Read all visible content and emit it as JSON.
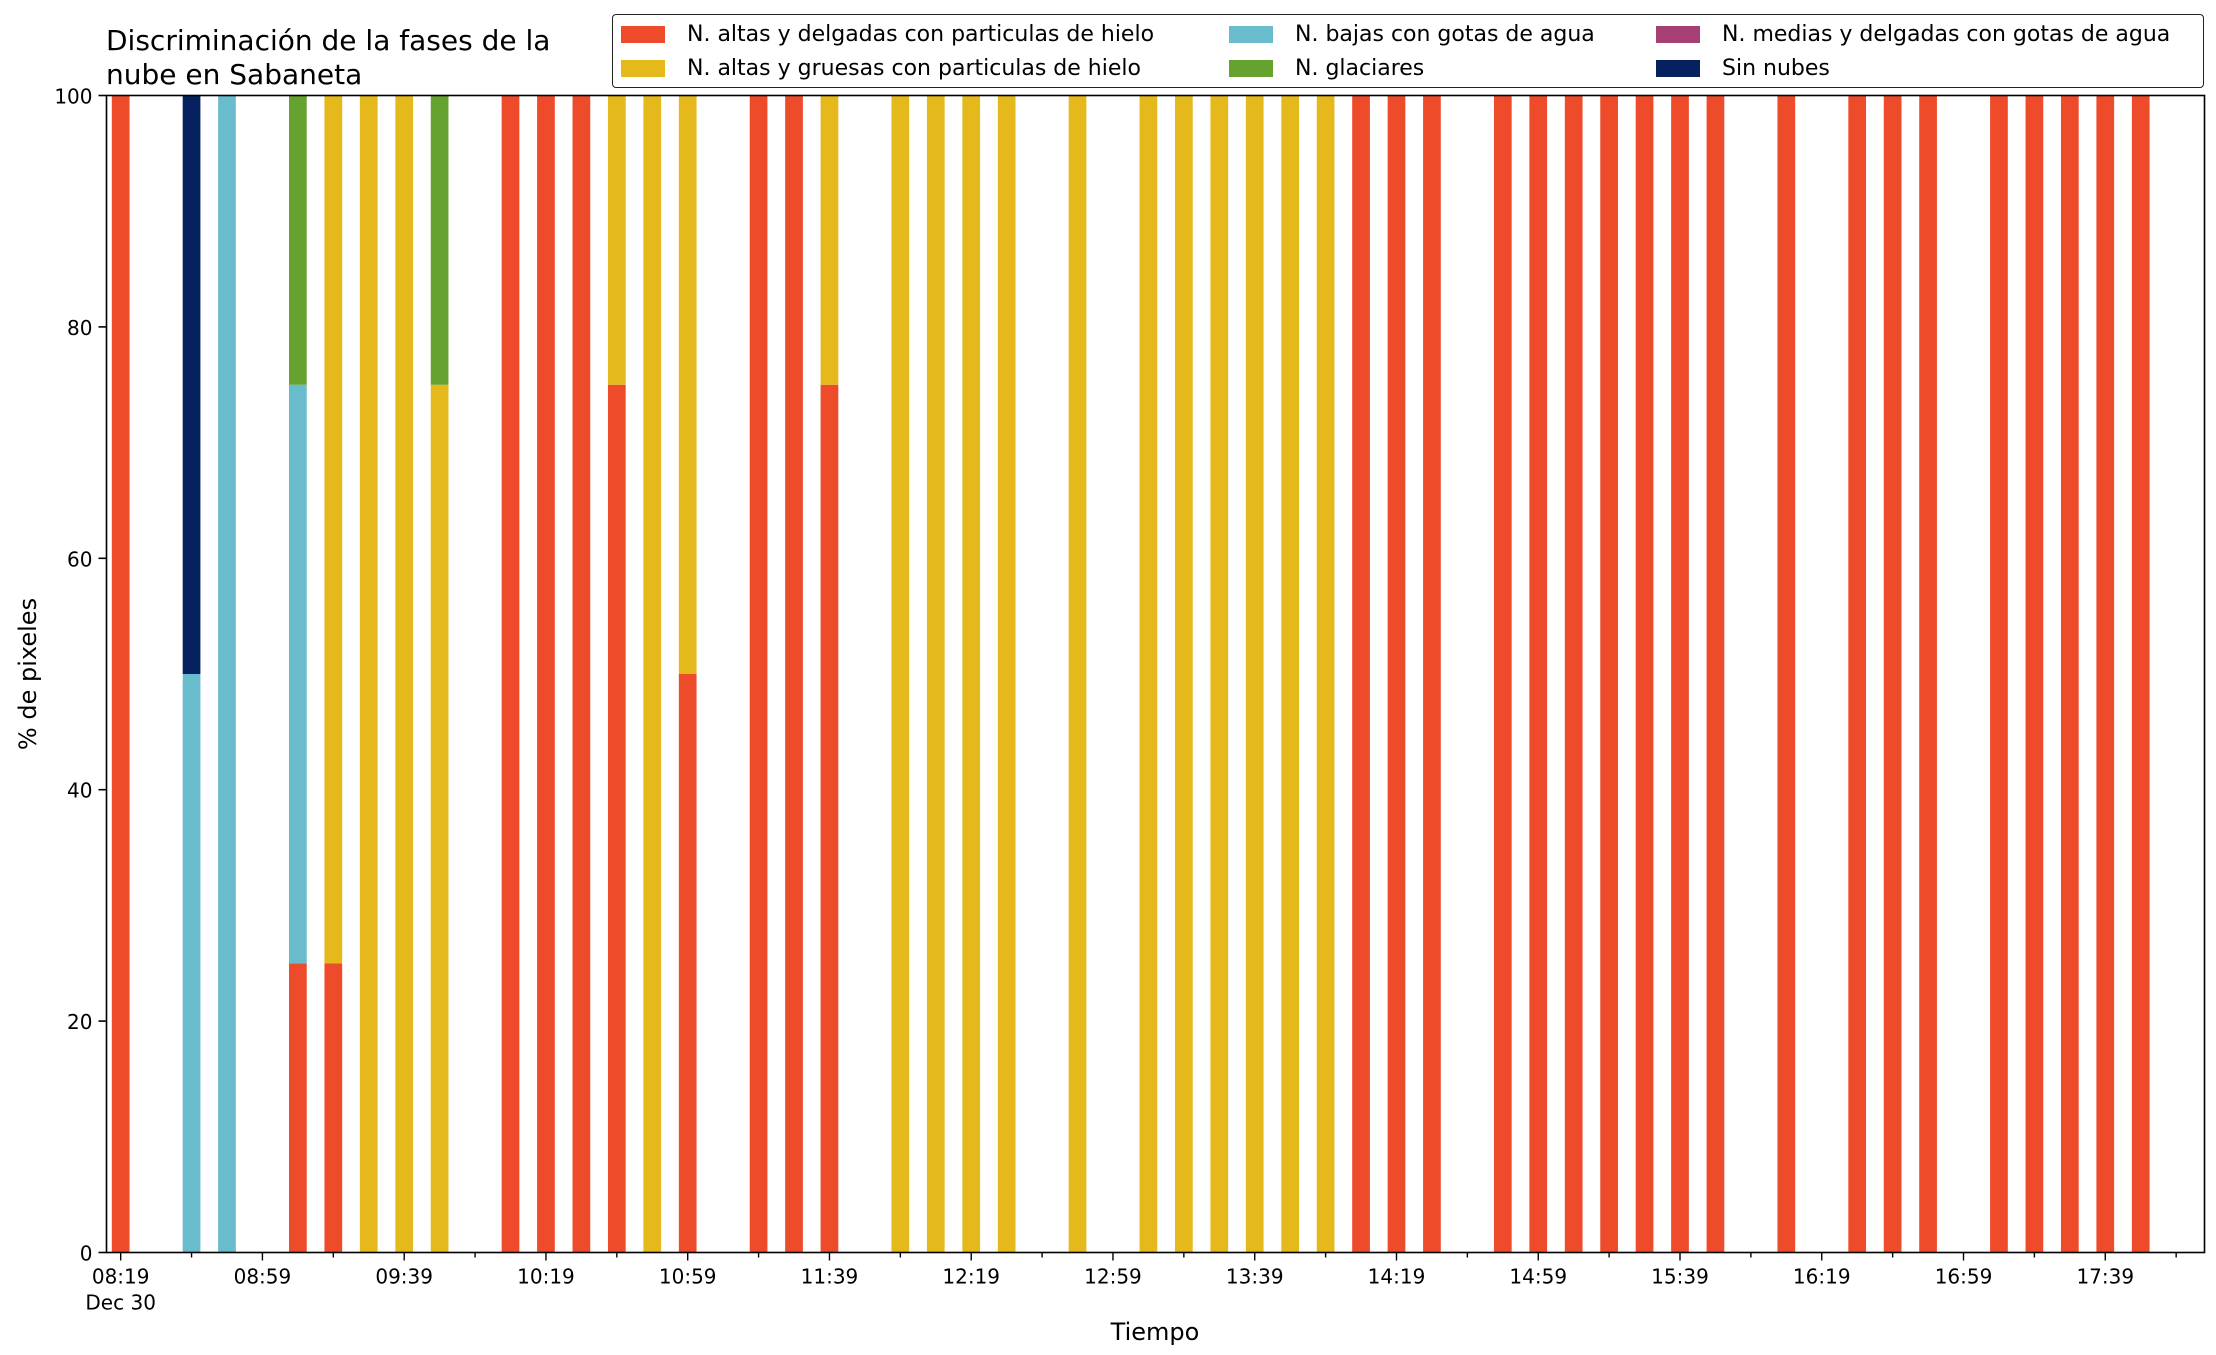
{
  "chart_data": {
    "type": "bar",
    "stacked": true,
    "title": [
      "Discriminación de la fases de la",
      "nube en Sabaneta"
    ],
    "xlabel": "Tiempo",
    "ylabel": "% de pixeles",
    "ylim": [
      0,
      100
    ],
    "yticks": [
      0,
      20,
      40,
      60,
      80,
      100
    ],
    "x_date": "Dec 30",
    "xlim": [
      "08:15",
      "18:07"
    ],
    "xticks_major": [
      "08:19",
      "08:59",
      "09:39",
      "10:19",
      "10:59",
      "11:39",
      "12:19",
      "12:59",
      "13:39",
      "14:19",
      "14:59",
      "15:39",
      "16:19",
      "16:59",
      "17:39"
    ],
    "bar_width_minutes": 5,
    "legend_position": "top-right",
    "grid": false,
    "series": [
      {
        "name": "N. altas y delgadas con particulas de hielo",
        "color": "#ee4b2b"
      },
      {
        "name": "N. altas y gruesas con particulas de hielo",
        "color": "#e5b81c"
      },
      {
        "name": "N. bajas con gotas de agua",
        "color": "#68bccb"
      },
      {
        "name": "N. glaciares",
        "color": "#66a22f"
      },
      {
        "name": "N. medias y delgadas con gotas de agua",
        "color": "#a53f74"
      },
      {
        "name": "Sin nubes",
        "color": "#06215f"
      }
    ],
    "stack_order": [
      0,
      2,
      1,
      3,
      4,
      5
    ],
    "bars": [
      {
        "x": "08:19",
        "values": [
          100,
          0,
          0,
          0,
          0,
          0
        ]
      },
      {
        "x": "08:39",
        "values": [
          0,
          0,
          50,
          0,
          0,
          50
        ]
      },
      {
        "x": "08:49",
        "values": [
          0,
          0,
          100,
          0,
          0,
          0
        ]
      },
      {
        "x": "09:09",
        "values": [
          25,
          0,
          50,
          25,
          0,
          0
        ]
      },
      {
        "x": "09:19",
        "values": [
          25,
          75,
          0,
          0,
          0,
          0
        ]
      },
      {
        "x": "09:29",
        "values": [
          0,
          100,
          0,
          0,
          0,
          0
        ]
      },
      {
        "x": "09:39",
        "values": [
          0,
          100,
          0,
          0,
          0,
          0
        ]
      },
      {
        "x": "09:49",
        "values": [
          0,
          75,
          0,
          25,
          0,
          0
        ]
      },
      {
        "x": "10:09",
        "values": [
          100,
          0,
          0,
          0,
          0,
          0
        ]
      },
      {
        "x": "10:19",
        "values": [
          100,
          0,
          0,
          0,
          0,
          0
        ]
      },
      {
        "x": "10:29",
        "values": [
          100,
          0,
          0,
          0,
          0,
          0
        ]
      },
      {
        "x": "10:39",
        "values": [
          75,
          25,
          0,
          0,
          0,
          0
        ]
      },
      {
        "x": "10:49",
        "values": [
          0,
          100,
          0,
          0,
          0,
          0
        ]
      },
      {
        "x": "10:59",
        "values": [
          50,
          50,
          0,
          0,
          0,
          0
        ]
      },
      {
        "x": "11:19",
        "values": [
          100,
          0,
          0,
          0,
          0,
          0
        ]
      },
      {
        "x": "11:29",
        "values": [
          100,
          0,
          0,
          0,
          0,
          0
        ]
      },
      {
        "x": "11:39",
        "values": [
          75,
          25,
          0,
          0,
          0,
          0
        ]
      },
      {
        "x": "11:59",
        "values": [
          0,
          100,
          0,
          0,
          0,
          0
        ]
      },
      {
        "x": "12:09",
        "values": [
          0,
          100,
          0,
          0,
          0,
          0
        ]
      },
      {
        "x": "12:19",
        "values": [
          0,
          100,
          0,
          0,
          0,
          0
        ]
      },
      {
        "x": "12:29",
        "values": [
          0,
          100,
          0,
          0,
          0,
          0
        ]
      },
      {
        "x": "12:49",
        "values": [
          0,
          100,
          0,
          0,
          0,
          0
        ]
      },
      {
        "x": "13:09",
        "values": [
          0,
          100,
          0,
          0,
          0,
          0
        ]
      },
      {
        "x": "13:19",
        "values": [
          0,
          100,
          0,
          0,
          0,
          0
        ]
      },
      {
        "x": "13:29",
        "values": [
          0,
          100,
          0,
          0,
          0,
          0
        ]
      },
      {
        "x": "13:39",
        "values": [
          0,
          100,
          0,
          0,
          0,
          0
        ]
      },
      {
        "x": "13:49",
        "values": [
          0,
          100,
          0,
          0,
          0,
          0
        ]
      },
      {
        "x": "13:59",
        "values": [
          0,
          100,
          0,
          0,
          0,
          0
        ]
      },
      {
        "x": "14:09",
        "values": [
          100,
          0,
          0,
          0,
          0,
          0
        ]
      },
      {
        "x": "14:19",
        "values": [
          100,
          0,
          0,
          0,
          0,
          0
        ]
      },
      {
        "x": "14:29",
        "values": [
          100,
          0,
          0,
          0,
          0,
          0
        ]
      },
      {
        "x": "14:49",
        "values": [
          100,
          0,
          0,
          0,
          0,
          0
        ]
      },
      {
        "x": "14:59",
        "values": [
          100,
          0,
          0,
          0,
          0,
          0
        ]
      },
      {
        "x": "15:09",
        "values": [
          100,
          0,
          0,
          0,
          0,
          0
        ]
      },
      {
        "x": "15:19",
        "values": [
          100,
          0,
          0,
          0,
          0,
          0
        ]
      },
      {
        "x": "15:29",
        "values": [
          100,
          0,
          0,
          0,
          0,
          0
        ]
      },
      {
        "x": "15:39",
        "values": [
          100,
          0,
          0,
          0,
          0,
          0
        ]
      },
      {
        "x": "15:49",
        "values": [
          100,
          0,
          0,
          0,
          0,
          0
        ]
      },
      {
        "x": "16:09",
        "values": [
          100,
          0,
          0,
          0,
          0,
          0
        ]
      },
      {
        "x": "16:29",
        "values": [
          100,
          0,
          0,
          0,
          0,
          0
        ]
      },
      {
        "x": "16:39",
        "values": [
          100,
          0,
          0,
          0,
          0,
          0
        ]
      },
      {
        "x": "16:49",
        "values": [
          100,
          0,
          0,
          0,
          0,
          0
        ]
      },
      {
        "x": "17:09",
        "values": [
          100,
          0,
          0,
          0,
          0,
          0
        ]
      },
      {
        "x": "17:19",
        "values": [
          100,
          0,
          0,
          0,
          0,
          0
        ]
      },
      {
        "x": "17:29",
        "values": [
          100,
          0,
          0,
          0,
          0,
          0
        ]
      },
      {
        "x": "17:39",
        "values": [
          100,
          0,
          0,
          0,
          0,
          0
        ]
      },
      {
        "x": "17:49",
        "values": [
          100,
          0,
          0,
          0,
          0,
          0
        ]
      }
    ]
  }
}
